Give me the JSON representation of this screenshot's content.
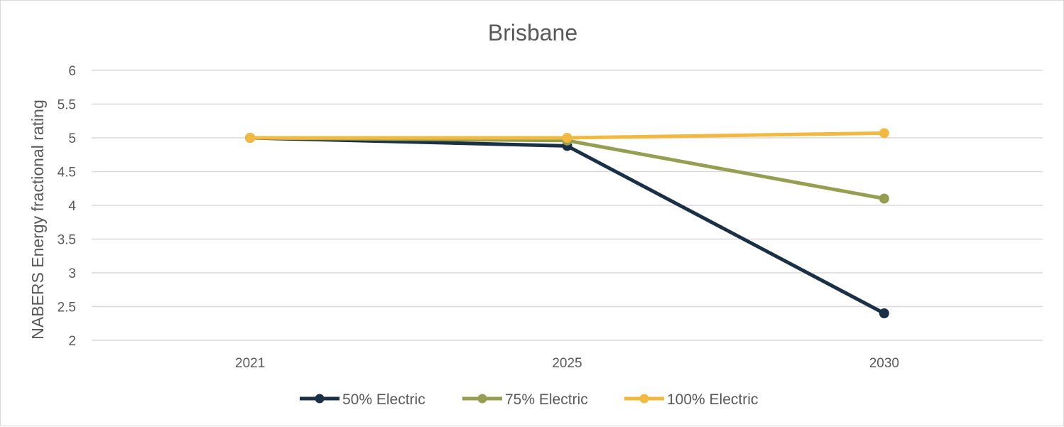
{
  "chart_data": {
    "type": "line",
    "title": "Brisbane",
    "xlabel": "",
    "ylabel": "NABERS Energy fractional rating",
    "categories": [
      "2021",
      "2025",
      "2030"
    ],
    "ylim": [
      2,
      6
    ],
    "yticks": [
      2,
      2.5,
      3,
      3.5,
      4,
      4.5,
      5,
      5.5,
      6
    ],
    "ytick_labels": [
      "2",
      "2.5",
      "3",
      "3.5",
      "4",
      "4.5",
      "5",
      "5.5",
      "6"
    ],
    "grid": true,
    "legend": "bottom",
    "series": [
      {
        "name": "50% Electric",
        "color": "#1b2f45",
        "values": [
          5.0,
          4.88,
          2.4
        ]
      },
      {
        "name": "75% Electric",
        "color": "#969e52",
        "values": [
          5.0,
          4.96,
          4.1
        ]
      },
      {
        "name": "100% Electric",
        "color": "#f2b940",
        "values": [
          5.0,
          5.0,
          5.07
        ]
      }
    ]
  }
}
